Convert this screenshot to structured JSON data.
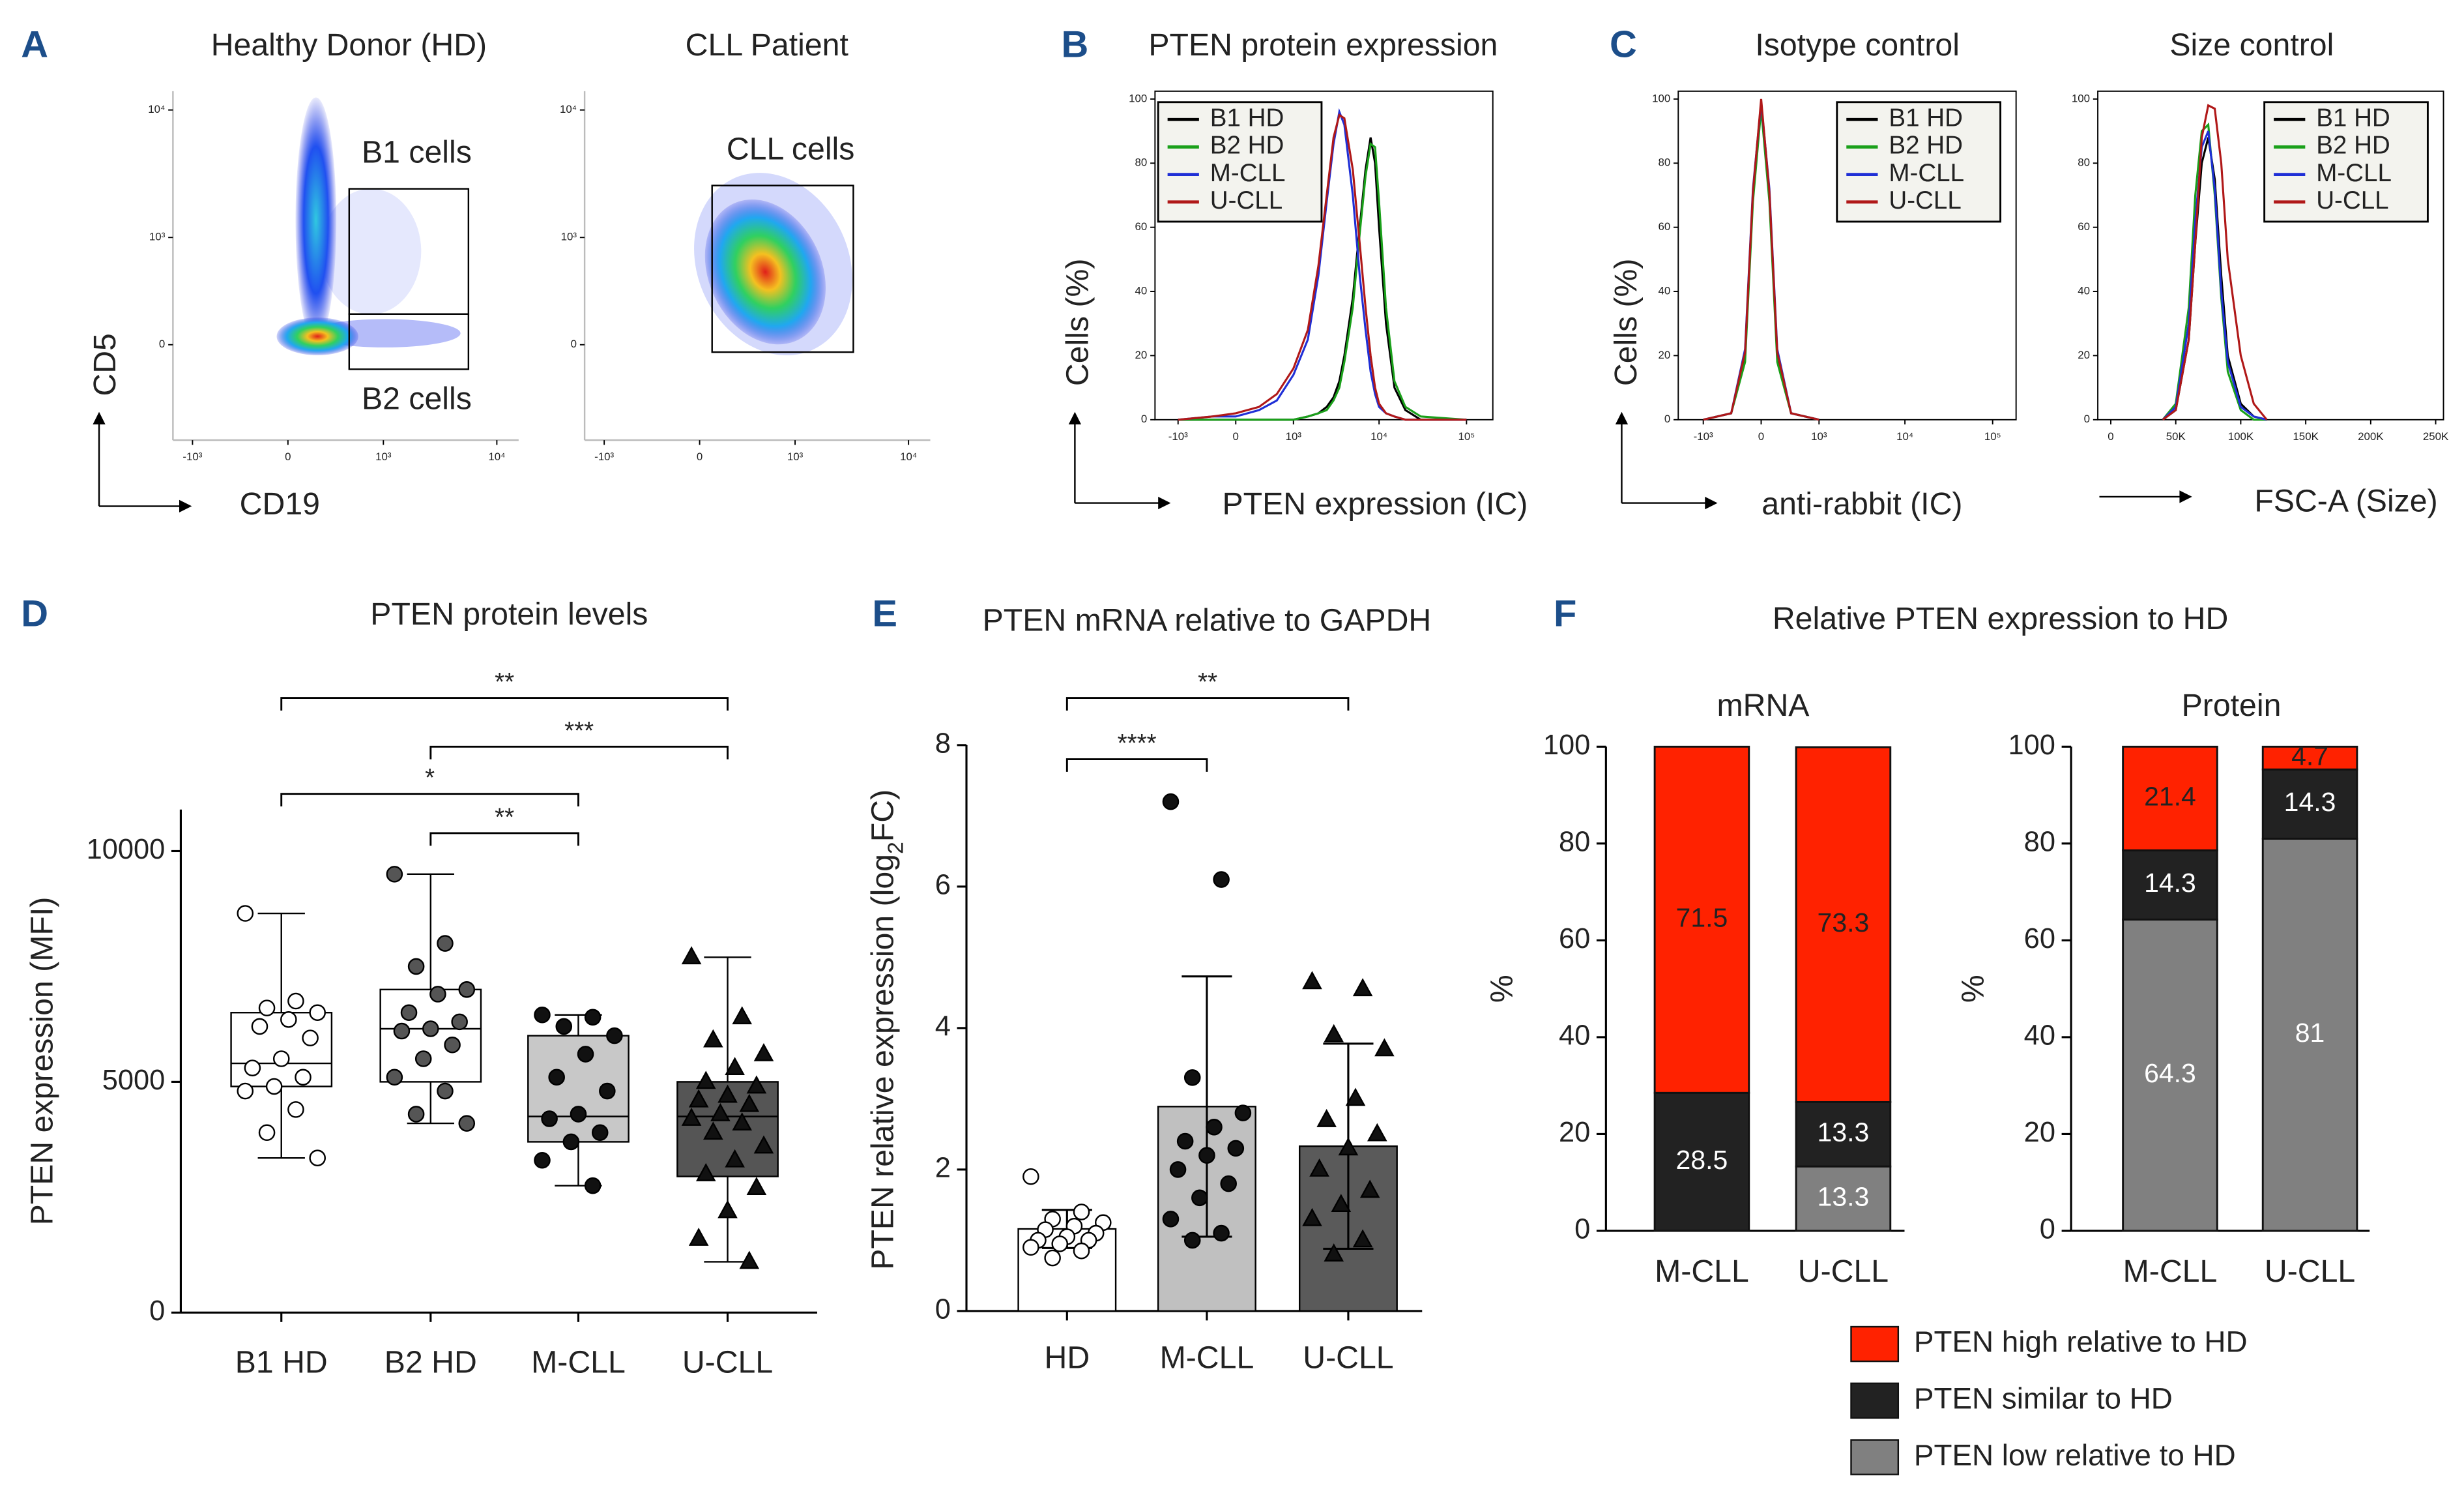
{
  "chart_data": [
    {
      "type": "flow-density",
      "panel": "A",
      "title": "Healthy Donor (HD)",
      "x_label": "CD19",
      "y_label": "CD5",
      "xscale": "biex",
      "yscale": "biex",
      "xlim": [
        -1500,
        15500
      ],
      "ylim": [
        -800,
        14000
      ],
      "xticks": [
        {
          "value": -1000,
          "label": "-10³"
        },
        0,
        {
          "value": 1000,
          "label": "10³"
        },
        {
          "value": 10000,
          "label": "10⁴"
        }
      ],
      "yticks": [
        0,
        {
          "value": 1000,
          "label": "10³"
        },
        {
          "value": 10000,
          "label": "10⁴"
        }
      ],
      "gates": [
        {
          "label": "B1 cells",
          "x": [
            470,
            5650
          ],
          "y": [
            173,
            2430
          ]
        },
        {
          "label": "B2 cells",
          "x": [
            470,
            5650
          ],
          "y": [
            -136,
            173
          ]
        }
      ]
    },
    {
      "type": "flow-density",
      "title": "CLL Patient",
      "xscale": "biex",
      "yscale": "biex",
      "xlim": [
        -1500,
        15500
      ],
      "ylim": [
        -800,
        14000
      ],
      "xticks": [
        {
          "value": -1000,
          "label": "-10³"
        },
        0,
        {
          "value": 1000,
          "label": "10³"
        },
        {
          "value": 10000,
          "label": "10⁴"
        }
      ],
      "yticks": [
        0,
        {
          "value": 1000,
          "label": "10³"
        },
        {
          "value": 10000,
          "label": "10⁴"
        }
      ],
      "gates": [
        {
          "label": "CLL cells",
          "x": [
            76,
            3290
          ],
          "y": [
            -40,
            2580
          ]
        }
      ]
    },
    {
      "type": "line",
      "panel": "B",
      "title": "PTEN protein expression",
      "x_label": "PTEN expression (IC)",
      "y_label": "Cells (%)",
      "xscale": "biex",
      "xlim": [
        -1900,
        200000
      ],
      "ylim": [
        0,
        100
      ],
      "xticks": [
        {
          "value": -1000,
          "label": "-10³"
        },
        0,
        {
          "value": 1000,
          "label": "10³"
        },
        {
          "value": 10000,
          "label": "10⁴"
        },
        {
          "value": 100000,
          "label": "10⁵"
        }
      ],
      "yticks": [
        0,
        20,
        40,
        60,
        80,
        100
      ],
      "legend": "upper left",
      "x": [
        -1000,
        -300,
        0,
        300,
        600,
        1000,
        1500,
        2000,
        2500,
        3000,
        3500,
        4000,
        5000,
        6000,
        7000,
        8000,
        9000,
        10000,
        12000,
        15000,
        20000,
        30000,
        100000
      ],
      "series": [
        {
          "name": "B1 HD",
          "color": "#000000",
          "values": [
            0,
            0,
            0,
            0,
            0,
            0,
            1,
            2,
            4,
            7,
            12,
            20,
            38,
            60,
            78,
            88,
            80,
            60,
            30,
            10,
            3,
            0,
            0
          ]
        },
        {
          "name": "B2 HD",
          "color": "#1aa01a",
          "values": [
            0,
            0,
            0,
            0,
            0,
            0,
            1,
            2,
            3,
            6,
            10,
            18,
            35,
            58,
            76,
            86,
            85,
            68,
            35,
            12,
            4,
            1,
            0
          ]
        },
        {
          "name": "M-CLL",
          "color": "#1f2fd6",
          "values": [
            0,
            1,
            1,
            3,
            6,
            14,
            25,
            45,
            68,
            86,
            96,
            92,
            70,
            45,
            28,
            15,
            8,
            4,
            2,
            1,
            0,
            0,
            0
          ]
        },
        {
          "name": "U-CLL",
          "color": "#b01818",
          "values": [
            0,
            1,
            2,
            4,
            8,
            16,
            28,
            48,
            70,
            88,
            95,
            94,
            78,
            55,
            35,
            20,
            10,
            5,
            2,
            1,
            0,
            0,
            0
          ]
        }
      ]
    },
    {
      "type": "line",
      "panel": "C",
      "title": "Isotype control",
      "x_label": "anti-rabbit (IC)",
      "y_label": "Cells (%)",
      "xscale": "biex",
      "xlim": [
        -2000,
        185000
      ],
      "ylim": [
        0,
        100
      ],
      "xticks": [
        {
          "value": -1000,
          "label": "-10³"
        },
        0,
        {
          "value": 1000,
          "label": "10³"
        },
        {
          "value": 10000,
          "label": "10⁴"
        },
        {
          "value": 100000,
          "label": "10⁵"
        }
      ],
      "yticks": [
        0,
        20,
        40,
        60,
        80,
        100
      ],
      "legend": "upper right",
      "x": [
        -1000,
        -400,
        -200,
        -100,
        0,
        100,
        200,
        400,
        1000
      ],
      "series": [
        {
          "name": "B1 HD",
          "color": "#000000",
          "values": [
            0,
            2,
            20,
            70,
            98,
            70,
            20,
            2,
            0
          ]
        },
        {
          "name": "B2 HD",
          "color": "#1aa01a",
          "values": [
            0,
            2,
            18,
            68,
            97,
            68,
            18,
            2,
            0
          ]
        },
        {
          "name": "M-CLL",
          "color": "#1f2fd6",
          "values": [
            0,
            2,
            22,
            72,
            99,
            72,
            22,
            2,
            0
          ]
        },
        {
          "name": "U-CLL",
          "color": "#b01818",
          "values": [
            0,
            2,
            21,
            71,
            100,
            71,
            21,
            2,
            0
          ]
        }
      ]
    },
    {
      "type": "line",
      "title": "Size control",
      "x_label": "FSC-A (Size)",
      "xlim": [
        -10000,
        256000
      ],
      "ylim": [
        0,
        100
      ],
      "xticks": [
        0,
        {
          "value": 50000,
          "label": "50K"
        },
        {
          "value": 100000,
          "label": "100K"
        },
        {
          "value": 150000,
          "label": "150K"
        },
        {
          "value": 200000,
          "label": "200K"
        },
        {
          "value": 250000,
          "label": "250K"
        }
      ],
      "yticks": [
        0,
        20,
        40,
        60,
        80,
        100
      ],
      "legend": "upper right",
      "x": [
        40000,
        50000,
        60000,
        65000,
        70000,
        75000,
        80000,
        85000,
        90000,
        100000,
        110000,
        120000
      ],
      "series": [
        {
          "name": "B1 HD",
          "color": "#000000",
          "values": [
            0,
            3,
            25,
            55,
            80,
            88,
            75,
            45,
            20,
            5,
            1,
            0
          ]
        },
        {
          "name": "B2 HD",
          "color": "#1aa01a",
          "values": [
            0,
            5,
            35,
            70,
            90,
            92,
            70,
            38,
            15,
            3,
            0,
            0
          ]
        },
        {
          "name": "M-CLL",
          "color": "#1f2fd6",
          "values": [
            0,
            4,
            30,
            62,
            85,
            90,
            72,
            40,
            18,
            4,
            1,
            0
          ]
        },
        {
          "name": "U-CLL",
          "color": "#b01818",
          "values": [
            0,
            3,
            25,
            55,
            88,
            98,
            97,
            80,
            50,
            20,
            5,
            0
          ]
        }
      ]
    },
    {
      "type": "box",
      "panel": "D",
      "title": "PTEN protein levels",
      "y_label": "PTEN expression (MFI)",
      "categories": [
        "B1 HD",
        "B2 HD",
        "M-CLL",
        "U-CLL"
      ],
      "ylim": [
        0,
        10900
      ],
      "yticks": [
        0,
        5000,
        10000
      ],
      "min": [
        3350,
        4100,
        2750,
        1100
      ],
      "q1": [
        4900,
        5000,
        3700,
        2950
      ],
      "median": [
        5400,
        6150,
        4250,
        4250
      ],
      "q3": [
        6500,
        7000,
        6000,
        5000
      ],
      "max": [
        8650,
        9500,
        6450,
        7700
      ],
      "colors": [
        "#ffffff",
        "#ffffff",
        "#c8c8c8",
        "#555555"
      ],
      "markers": [
        {
          "shape": "circle",
          "color": "#ffffff"
        },
        {
          "shape": "circle",
          "color": "#555555"
        },
        {
          "shape": "circle",
          "color": "#111111"
        },
        {
          "shape": "triangle",
          "color": "#111111"
        }
      ],
      "points": [
        [
          8650,
          6750,
          6600,
          6500,
          6350,
          6200,
          5950,
          5500,
          5300,
          5100,
          4900,
          4800,
          4400,
          3900,
          3350
        ],
        [
          9500,
          8000,
          7500,
          7000,
          6900,
          6500,
          6300,
          6150,
          6100,
          5800,
          5500,
          5100,
          4800,
          4300,
          4100
        ],
        [
          6450,
          6400,
          6200,
          6000,
          5600,
          5100,
          4800,
          4300,
          4200,
          3900,
          3700,
          3300,
          2750
        ],
        [
          7700,
          6400,
          5900,
          5600,
          5300,
          5000,
          4900,
          4700,
          4600,
          4500,
          4300,
          4200,
          4100,
          3900,
          3600,
          3300,
          3000,
          2700,
          2200,
          1600,
          1100
        ]
      ],
      "significance": [
        {
          "from": "B1 HD",
          "to": "U-CLL",
          "label": "**"
        },
        {
          "from": "B2 HD",
          "to": "U-CLL",
          "label": "***"
        },
        {
          "from": "B1 HD",
          "to": "M-CLL",
          "label": "*"
        },
        {
          "from": "B2 HD",
          "to": "M-CLL",
          "label": "**"
        }
      ]
    },
    {
      "type": "bar",
      "panel": "E",
      "title": "PTEN mRNA relative to GAPDH",
      "y_label": [
        "PTEN relative expression (log",
        "2",
        "FC)"
      ],
      "categories": [
        "HD",
        "M-CLL",
        "U-CLL"
      ],
      "values": [
        1.16,
        2.89,
        2.33
      ],
      "errors": [
        0.27,
        1.84,
        1.45
      ],
      "colors": [
        "#ffffff",
        "#c0c0c0",
        "#5a5a5a"
      ],
      "markers": [
        {
          "shape": "circle",
          "color": "#ffffff"
        },
        {
          "shape": "circle",
          "color": "#111111"
        },
        {
          "shape": "triangle",
          "color": "#111111"
        }
      ],
      "points": [
        [
          1.9,
          1.4,
          1.3,
          1.25,
          1.2,
          1.15,
          1.1,
          1.05,
          1.0,
          1.0,
          0.95,
          0.9,
          0.85,
          0.75
        ],
        [
          7.2,
          6.1,
          3.3,
          2.8,
          2.6,
          2.4,
          2.3,
          2.2,
          2.0,
          1.8,
          1.6,
          1.3,
          1.1,
          1.0
        ],
        [
          4.65,
          4.55,
          3.9,
          3.7,
          3.0,
          2.7,
          2.5,
          2.3,
          2.0,
          1.7,
          1.5,
          1.3,
          1.0,
          0.8
        ]
      ],
      "ylim": [
        0,
        8
      ],
      "yticks": [
        0,
        2,
        4,
        6,
        8
      ],
      "significance": [
        {
          "from": "HD",
          "to": "U-CLL",
          "label": "**"
        },
        {
          "from": "HD",
          "to": "M-CLL",
          "label": "****"
        }
      ]
    },
    {
      "type": "stacked-bar",
      "panel": "F",
      "title": "Relative PTEN expression to HD",
      "series": [
        {
          "name": "PTEN high relative to HD",
          "color": "#ff2200",
          "text_color": "#222222"
        },
        {
          "name": "PTEN similar to HD",
          "color": "#222222",
          "text_color": "#ffffff"
        },
        {
          "name": "PTEN low relative to HD",
          "color": "#808080",
          "text_color": "#ffffff"
        }
      ],
      "facets": [
        {
          "title": "mRNA",
          "y_label": "%",
          "categories": [
            "M-CLL",
            "U-CLL"
          ],
          "ylim": [
            0,
            100
          ],
          "yticks": [
            0,
            20,
            40,
            60,
            80,
            100
          ],
          "values": [
            [
              71.5,
              28.5,
              0
            ],
            [
              73.3,
              13.3,
              13.3
            ]
          ]
        },
        {
          "title": "Protein",
          "y_label": "%",
          "categories": [
            "M-CLL",
            "U-CLL"
          ],
          "ylim": [
            0,
            100
          ],
          "yticks": [
            0,
            20,
            40,
            60,
            80,
            100
          ],
          "values": [
            [
              21.4,
              14.3,
              64.3
            ],
            [
              4.7,
              14.3,
              81
            ]
          ]
        }
      ]
    }
  ]
}
